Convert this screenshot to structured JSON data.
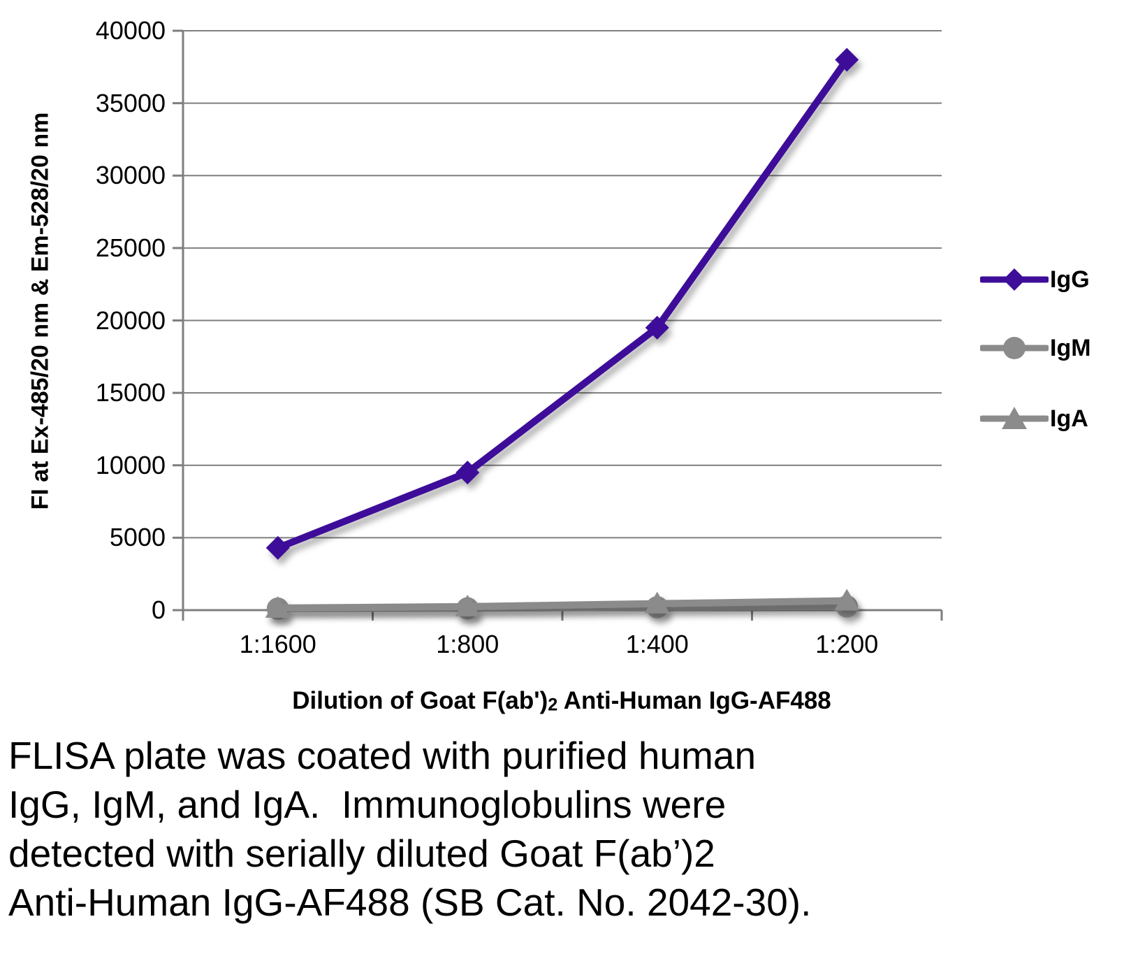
{
  "figure": {
    "caption_lines": [
      "FLISA plate was coated with purified human",
      "IgG, IgM, and IgA.  Immunoglobulins were",
      "detected with serially diluted Goat F(ab’)2",
      "Anti-Human IgG-AF488 (SB Cat. No. 2042-30)."
    ]
  },
  "chart_data": {
    "type": "line",
    "title": "",
    "categories": [
      "1:1600",
      "1:800",
      "1:400",
      "1:200"
    ],
    "series": [
      {
        "name": "IgG",
        "marker": "diamond",
        "color": "#3E0D99",
        "values": [
          4300,
          9500,
          19500,
          38000
        ]
      },
      {
        "name": "IgM",
        "marker": "circle",
        "color": "#8B8B8B",
        "values": [
          100,
          120,
          200,
          250
        ]
      },
      {
        "name": "IgA",
        "marker": "triangle",
        "color": "#8B8B8B",
        "values": [
          150,
          250,
          450,
          650
        ]
      }
    ],
    "xlabel": "Dilution of Goat F(ab')2 Anti-Human IgG-AF488",
    "xlabel_parts": {
      "prefix": "Dilution of Goat F(ab')",
      "sub": "2",
      "suffix": " Anti-Human IgG-AF488"
    },
    "ylabel": "FI at Ex-485/20 nm & Em-528/20 nm",
    "ylim": [
      0,
      40000
    ],
    "yticks": [
      0,
      5000,
      10000,
      15000,
      20000,
      25000,
      30000,
      35000,
      40000
    ],
    "grid": "horizontal gridlines on",
    "legend_position": "right",
    "colors": {
      "grid": "#7F7F7F",
      "axis": "#7F7F7F",
      "text": "#000000"
    }
  }
}
